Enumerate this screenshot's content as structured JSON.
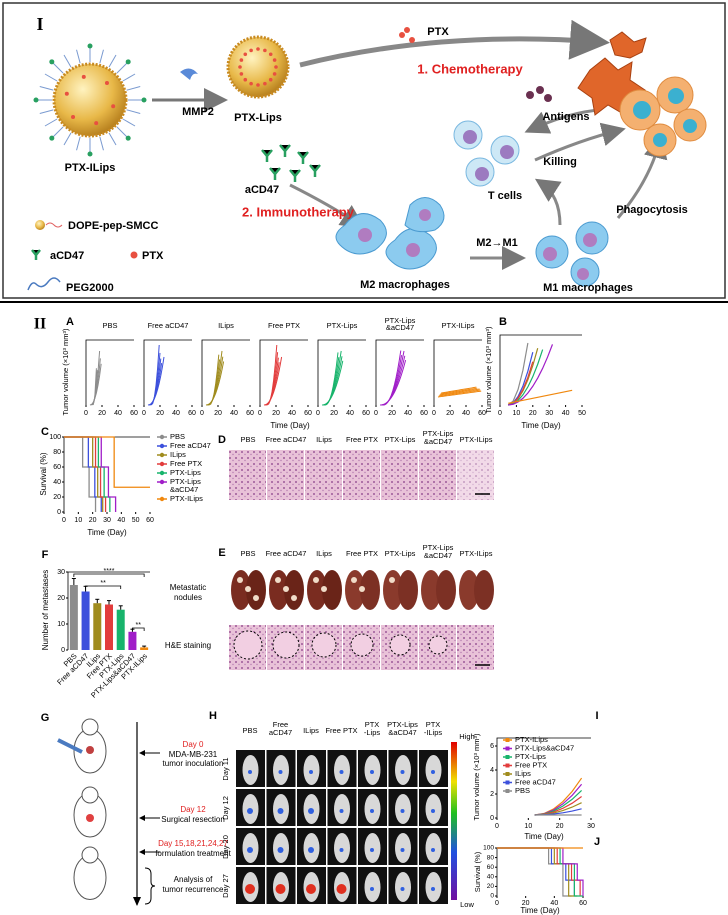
{
  "panel_I": {
    "label": "I",
    "ptx_ilips": "PTX-ILips",
    "mmp2": "MMP2",
    "ptx_lips": "PTX-Lips",
    "ptx": "PTX",
    "chemotherapy": "1. Chemotherapy",
    "acd47": "aCD47",
    "immunotherapy": "2. Immunotherapy",
    "antigens": "Antigens",
    "killing": "Killing",
    "t_cells": "T cells",
    "phagocytosis": "Phagocytosis",
    "m2_m1": "M2→M1",
    "m2_macrophages": "M2 macrophages",
    "m1_macrophages": "M1 macrophages",
    "legend": [
      "DOPE-pep-SMCC",
      "aCD47",
      "PTX",
      "PEG2000"
    ]
  },
  "panel_II": {
    "label": "II",
    "groups": [
      {
        "name": "PBS",
        "color": "#8c8c8c"
      },
      {
        "name": "Free aCD47",
        "color": "#3c50dc"
      },
      {
        "name": "ILips",
        "color": "#a08c1e"
      },
      {
        "name": "Free PTX",
        "color": "#e23c3c"
      },
      {
        "name": "PTX-Lips",
        "color": "#18b46c"
      },
      {
        "name": "PTX-Lips&aCD47",
        "color": "#a01ec8"
      },
      {
        "name": "PTX-ILips",
        "color": "#f0880e"
      }
    ],
    "A": {
      "letter": "A",
      "titles": [
        [
          "PBS"
        ],
        [
          "Free aCD47"
        ],
        [
          "ILips"
        ],
        [
          "Free PTX"
        ],
        [
          "PTX-Lips"
        ],
        [
          "PTX-Lips",
          "&aCD47"
        ],
        [
          "PTX-ILips"
        ]
      ],
      "ylabel": "Tumor volume (×10³ mm³)",
      "xlabel": "Time (Day)",
      "xticks": [
        0,
        20,
        40,
        60
      ]
    },
    "B": {
      "letter": "B",
      "ylabel": "Tumor volume (×10³ mm³)",
      "xlabel": "Time (Day)",
      "xticks": [
        0,
        10,
        20,
        30,
        40,
        50
      ]
    },
    "C": {
      "letter": "C",
      "ylabel": "Survival (%)",
      "yticks": [
        0,
        20,
        40,
        60,
        80,
        100
      ],
      "xlabel": "Time (Day)",
      "xticks": [
        0,
        10,
        20,
        30,
        40,
        50,
        60
      ],
      "legend": [
        [
          "PBS"
        ],
        [
          "Free aCD47"
        ],
        [
          "ILips"
        ],
        [
          "Free PTX"
        ],
        [
          "PTX-Lips"
        ],
        [
          "PTX-Lips",
          "&aCD47"
        ],
        [
          "PTX-ILips"
        ]
      ]
    },
    "D": {
      "letter": "D",
      "labels": [
        [
          "PBS"
        ],
        [
          "Free aCD47"
        ],
        [
          "ILips"
        ],
        [
          "Free PTX"
        ],
        [
          "PTX-Lips"
        ],
        [
          "PTX-Lips",
          "&aCD47"
        ],
        [
          "PTX-ILips"
        ]
      ]
    },
    "E": {
      "letter": "E",
      "labels": [
        [
          "PBS"
        ],
        [
          "Free aCD47"
        ],
        [
          "ILips"
        ],
        [
          "Free PTX"
        ],
        [
          "PTX-Lips"
        ],
        [
          "PTX-Lips",
          "&aCD47"
        ],
        [
          "PTX-ILips"
        ]
      ],
      "row_labels": [
        [
          "Metastatic",
          "nodules"
        ],
        [
          "H&E staining"
        ]
      ]
    },
    "F": {
      "letter": "F",
      "ylabel": "Number of metastases",
      "ylim": [
        0,
        30
      ],
      "yticks": [
        0,
        10,
        20,
        30
      ],
      "categories": [
        "PBS",
        "Free aCD47",
        "ILips",
        "Free PTX",
        "PTX-Lips",
        "PTX-Lips&aCD47",
        "PTX-ILips"
      ],
      "values": [
        25,
        22.5,
        18,
        17.5,
        15.5,
        7,
        1
      ],
      "errors": [
        2.5,
        2,
        1.5,
        1.5,
        1.5,
        1,
        0.5
      ],
      "significance": [
        "****",
        "**",
        "**"
      ]
    },
    "G": {
      "letter": "G",
      "steps": [
        {
          "day": "Day 0",
          "text": [
            "MDA-MB-231",
            "tumor inoculation"
          ]
        },
        {
          "day": "Day 12",
          "text": [
            "Surgical resection"
          ]
        },
        {
          "day": "Day 15,18,21,24,27",
          "text": [
            "formulation treatment"
          ]
        }
      ],
      "analysis": [
        "Analysis of",
        "tumor recurrence"
      ]
    },
    "H": {
      "letter": "H",
      "columns": [
        [
          "PBS"
        ],
        [
          "Free",
          "aCD47"
        ],
        [
          "ILips"
        ],
        [
          "Free PTX"
        ],
        [
          "PTX",
          "-Lips"
        ],
        [
          "PTX-Lips",
          "&aCD47"
        ],
        [
          "PTX",
          "-ILips"
        ]
      ],
      "rows": [
        "Day 11",
        "Day 12",
        "Day 20",
        "Day 27"
      ],
      "high": "High",
      "low": "Low"
    },
    "I": {
      "letter": "I",
      "legend": [
        {
          "name": "PTX-ILips",
          "color": "#f0880e"
        },
        {
          "name": "PTX-Lips&aCD47",
          "color": "#a01ec8"
        },
        {
          "name": "PTX-Lips",
          "color": "#18b46c"
        },
        {
          "name": "Free PTX",
          "color": "#e23c3c"
        },
        {
          "name": "ILips",
          "color": "#a08c1e"
        },
        {
          "name": "Free aCD47",
          "color": "#3c50dc"
        },
        {
          "name": "PBS",
          "color": "#8c8c8c"
        }
      ],
      "ylabel": "Tumor volume (×10³ mm³)",
      "yticks": [
        0,
        2,
        4,
        6
      ],
      "xticks": [
        0,
        10,
        20,
        30
      ],
      "xlabel": "Time (Day)"
    },
    "J": {
      "letter": "J",
      "ylabel": "Survival (%)",
      "yticks": [
        0,
        20,
        40,
        60,
        80,
        100
      ],
      "xticks": [
        0,
        20,
        40,
        60
      ],
      "xlabel": "Time (Day)"
    }
  }
}
